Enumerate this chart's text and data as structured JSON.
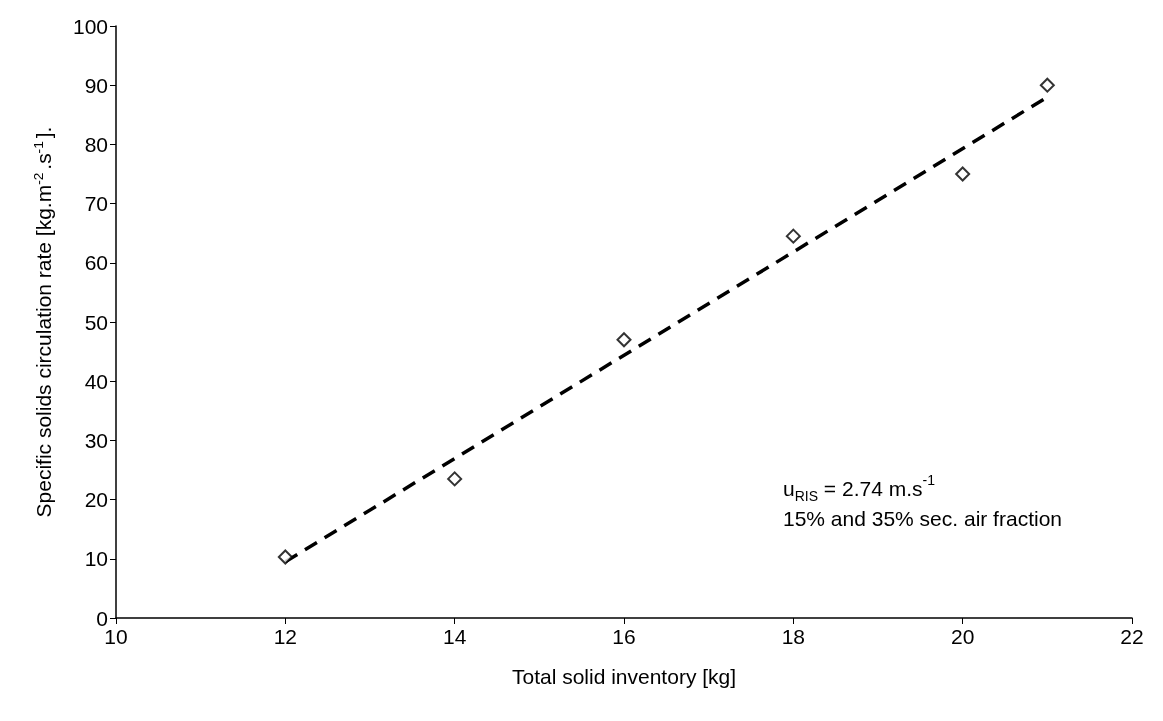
{
  "chart_data": {
    "type": "scatter",
    "xlabel": "Total solid inventory [kg]",
    "ylabel": "Specific solids circulation rate [kg.m$^{-2}$.s$^{-1}$].",
    "annotations": [
      "u$_{RIS}$ = 2.74 m.s$^{-1}$",
      "15% and 35% sec. air fraction"
    ],
    "series": [
      {
        "color": "#000000",
        "marker": "diamond",
        "x": [
          12,
          14,
          16,
          18,
          20,
          21
        ],
        "values": [
          10.3,
          23.5,
          47,
          64.5,
          75,
          90
        ]
      },
      {
        "type": "line",
        "color": "#000000",
        "marker": "none",
        "line_style": "dashed",
        "x": [
          12,
          21
        ],
        "values": [
          9.5,
          88
        ]
      }
    ],
    "xlim": [
      10,
      22
    ],
    "xticks": [
      10,
      12,
      14,
      16,
      18,
      20,
      22
    ],
    "ylim": [
      0,
      100
    ],
    "yticks": [
      0,
      10,
      20,
      30,
      40,
      50,
      60,
      70,
      80,
      90,
      100
    ],
    "grid": false
  }
}
